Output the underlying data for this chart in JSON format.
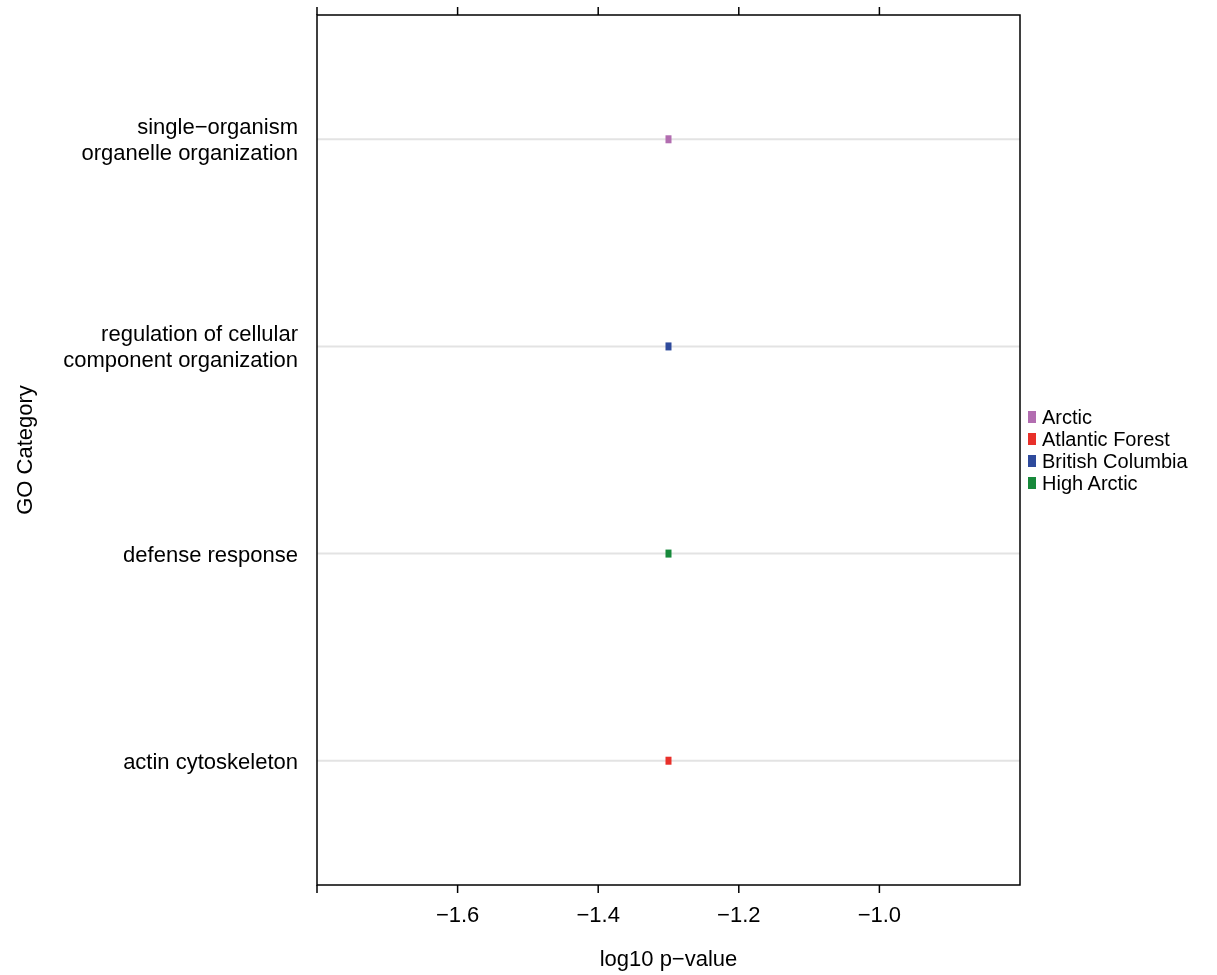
{
  "chart_data": {
    "type": "scatter",
    "orientation": "horizontal",
    "xlabel": "log10 p−value",
    "ylabel": "GO Category",
    "categories": [
      "single−organism\norganelle organization",
      "regulation of cellular\ncomponent organization",
      "defense response",
      "actin cytoskeleton"
    ],
    "series": [
      {
        "name": "Arctic",
        "color": "#b26db0",
        "values": [
          -1.3,
          null,
          null,
          null
        ]
      },
      {
        "name": "Atlantic Forest",
        "color": "#e8302a",
        "values": [
          null,
          null,
          null,
          -1.3
        ]
      },
      {
        "name": "British Columbia",
        "color": "#2e4a9c",
        "values": [
          null,
          -1.3,
          null,
          null
        ]
      },
      {
        "name": "High Arctic",
        "color": "#17893b",
        "values": [
          null,
          null,
          -1.3,
          null
        ]
      }
    ],
    "xlim": [
      -1.8,
      -0.8
    ],
    "xticks": [
      {
        "value": -1.8,
        "label": null
      },
      {
        "value": -1.6,
        "label": "−1.6"
      },
      {
        "value": -1.4,
        "label": "−1.4"
      },
      {
        "value": -1.2,
        "label": "−1.2"
      },
      {
        "value": -1.0,
        "label": "−1.0"
      }
    ],
    "grid": "y",
    "legend": "right",
    "marker": "square"
  }
}
